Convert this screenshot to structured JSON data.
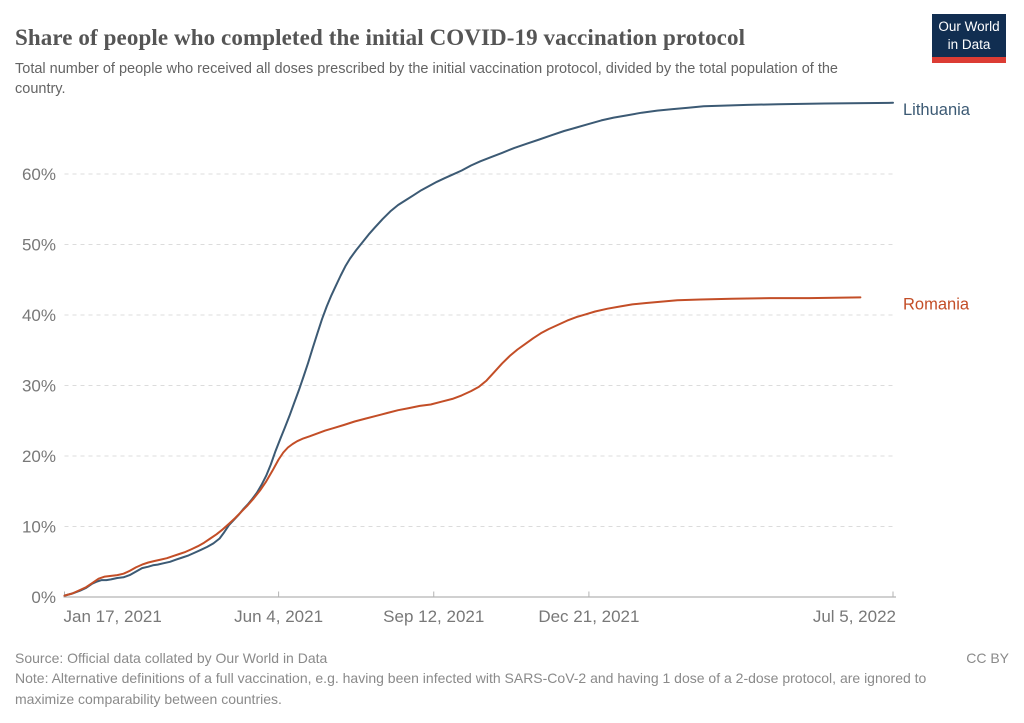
{
  "header": {
    "title": "Share of people who completed the initial COVID-19 vaccination protocol",
    "subtitle": "Total number of people who received all doses prescribed by the initial vaccination protocol, divided by the total population of the country.",
    "logo": {
      "line1": "Our World",
      "line2": "in Data"
    }
  },
  "footer": {
    "source": "Source: Official data collated by Our World in Data",
    "license": "CC BY",
    "note": "Note: Alternative definitions of a full vaccination, e.g. having been infected with SARS-CoV-2 and having 1 dose of a 2-dose protocol, are ignored to maximize comparability between countries."
  },
  "colors": {
    "lithuania": "#3C5A74",
    "romania": "#C34E27",
    "grid": "#dcdcdc",
    "axis": "#a1a1a1",
    "tick": "#b3b3b3",
    "tick_label": "#787878",
    "logo_bg": "#112E51",
    "logo_bar": "#DC3C34"
  },
  "chart_data": {
    "type": "line",
    "title": "Share of people who completed the initial COVID-19 vaccination protocol",
    "xlabel": "",
    "ylabel": "",
    "grid": true,
    "legend_position": "right-end-labels",
    "y_axis": {
      "min": 0,
      "max": 70,
      "unit": "%",
      "tick_step": 10,
      "tick_labels": [
        "0%",
        "10%",
        "20%",
        "30%",
        "40%",
        "50%",
        "60%"
      ]
    },
    "x_axis": {
      "start_date": "Jan 17, 2021",
      "end_date": "Jul 5, 2022",
      "range_days": [
        0,
        534
      ],
      "ticks": [
        {
          "label": "Jan 17, 2021",
          "day": 0,
          "align": "start"
        },
        {
          "label": "Jun 4, 2021",
          "day": 138,
          "align": "middle"
        },
        {
          "label": "Sep 12, 2021",
          "day": 238,
          "align": "middle"
        },
        {
          "label": "Dec 21, 2021",
          "day": 338,
          "align": "middle"
        },
        {
          "label": "Jul 5, 2022",
          "day": 534,
          "align": "end"
        }
      ]
    },
    "series": [
      {
        "name": "Lithuania",
        "color": "#3C5A74",
        "points": [
          [
            0,
            0.2
          ],
          [
            5,
            0.5
          ],
          [
            10,
            0.9
          ],
          [
            14,
            1.3
          ],
          [
            18,
            1.9
          ],
          [
            21,
            2.2
          ],
          [
            24,
            2.4
          ],
          [
            27,
            2.4
          ],
          [
            30,
            2.5
          ],
          [
            34,
            2.7
          ],
          [
            38,
            2.8
          ],
          [
            42,
            3.1
          ],
          [
            46,
            3.6
          ],
          [
            50,
            4.1
          ],
          [
            54,
            4.3
          ],
          [
            57,
            4.5
          ],
          [
            60,
            4.6
          ],
          [
            64,
            4.8
          ],
          [
            68,
            5.0
          ],
          [
            72,
            5.3
          ],
          [
            76,
            5.6
          ],
          [
            80,
            5.9
          ],
          [
            84,
            6.3
          ],
          [
            88,
            6.7
          ],
          [
            92,
            7.1
          ],
          [
            96,
            7.6
          ],
          [
            100,
            8.3
          ],
          [
            103,
            9.2
          ],
          [
            106,
            10.2
          ],
          [
            109,
            10.9
          ],
          [
            112,
            11.6
          ],
          [
            115,
            12.4
          ],
          [
            118,
            13.1
          ],
          [
            121,
            13.9
          ],
          [
            124,
            14.8
          ],
          [
            127,
            15.9
          ],
          [
            130,
            17.2
          ],
          [
            133,
            18.8
          ],
          [
            136,
            20.7
          ],
          [
            139,
            22.4
          ],
          [
            142,
            24.0
          ],
          [
            145,
            25.7
          ],
          [
            148,
            27.5
          ],
          [
            151,
            29.3
          ],
          [
            154,
            31.2
          ],
          [
            157,
            33.2
          ],
          [
            160,
            35.3
          ],
          [
            163,
            37.4
          ],
          [
            166,
            39.4
          ],
          [
            169,
            41.2
          ],
          [
            172,
            42.8
          ],
          [
            175,
            44.2
          ],
          [
            178,
            45.6
          ],
          [
            181,
            46.9
          ],
          [
            184,
            48.0
          ],
          [
            188,
            49.2
          ],
          [
            192,
            50.3
          ],
          [
            196,
            51.4
          ],
          [
            200,
            52.4
          ],
          [
            205,
            53.6
          ],
          [
            210,
            54.7
          ],
          [
            215,
            55.6
          ],
          [
            220,
            56.3
          ],
          [
            225,
            57.0
          ],
          [
            230,
            57.7
          ],
          [
            235,
            58.3
          ],
          [
            240,
            58.9
          ],
          [
            245,
            59.4
          ],
          [
            250,
            59.9
          ],
          [
            256,
            60.5
          ],
          [
            262,
            61.2
          ],
          [
            268,
            61.8
          ],
          [
            275,
            62.4
          ],
          [
            282,
            63.0
          ],
          [
            290,
            63.7
          ],
          [
            298,
            64.3
          ],
          [
            306,
            64.9
          ],
          [
            314,
            65.5
          ],
          [
            322,
            66.1
          ],
          [
            330,
            66.6
          ],
          [
            338,
            67.1
          ],
          [
            346,
            67.6
          ],
          [
            354,
            68.0
          ],
          [
            362,
            68.3
          ],
          [
            372,
            68.7
          ],
          [
            382,
            69.0
          ],
          [
            392,
            69.2
          ],
          [
            402,
            69.4
          ],
          [
            412,
            69.6
          ],
          [
            425,
            69.7
          ],
          [
            440,
            69.8
          ],
          [
            460,
            69.9
          ],
          [
            490,
            70.0
          ],
          [
            534,
            70.1
          ]
        ]
      },
      {
        "name": "Romania",
        "color": "#C34E27",
        "points": [
          [
            0,
            0.2
          ],
          [
            5,
            0.5
          ],
          [
            10,
            1.0
          ],
          [
            14,
            1.4
          ],
          [
            18,
            2.0
          ],
          [
            22,
            2.6
          ],
          [
            26,
            2.9
          ],
          [
            30,
            3.0
          ],
          [
            34,
            3.1
          ],
          [
            38,
            3.3
          ],
          [
            42,
            3.7
          ],
          [
            46,
            4.2
          ],
          [
            50,
            4.6
          ],
          [
            54,
            4.9
          ],
          [
            58,
            5.1
          ],
          [
            62,
            5.3
          ],
          [
            66,
            5.5
          ],
          [
            70,
            5.8
          ],
          [
            74,
            6.1
          ],
          [
            78,
            6.4
          ],
          [
            82,
            6.8
          ],
          [
            86,
            7.2
          ],
          [
            90,
            7.7
          ],
          [
            94,
            8.3
          ],
          [
            98,
            8.9
          ],
          [
            102,
            9.6
          ],
          [
            106,
            10.4
          ],
          [
            110,
            11.2
          ],
          [
            114,
            12.1
          ],
          [
            118,
            13.0
          ],
          [
            122,
            14.0
          ],
          [
            126,
            15.1
          ],
          [
            130,
            16.4
          ],
          [
            134,
            17.9
          ],
          [
            138,
            19.5
          ],
          [
            141,
            20.5
          ],
          [
            144,
            21.2
          ],
          [
            147,
            21.7
          ],
          [
            150,
            22.1
          ],
          [
            154,
            22.5
          ],
          [
            158,
            22.8
          ],
          [
            163,
            23.2
          ],
          [
            168,
            23.6
          ],
          [
            174,
            24.0
          ],
          [
            180,
            24.4
          ],
          [
            187,
            24.9
          ],
          [
            194,
            25.3
          ],
          [
            201,
            25.7
          ],
          [
            208,
            26.1
          ],
          [
            215,
            26.5
          ],
          [
            222,
            26.8
          ],
          [
            229,
            27.1
          ],
          [
            236,
            27.3
          ],
          [
            243,
            27.7
          ],
          [
            250,
            28.1
          ],
          [
            256,
            28.6
          ],
          [
            262,
            29.2
          ],
          [
            267,
            29.8
          ],
          [
            272,
            30.7
          ],
          [
            277,
            31.9
          ],
          [
            282,
            33.1
          ],
          [
            287,
            34.2
          ],
          [
            292,
            35.1
          ],
          [
            297,
            35.9
          ],
          [
            302,
            36.7
          ],
          [
            307,
            37.4
          ],
          [
            312,
            38.0
          ],
          [
            318,
            38.6
          ],
          [
            324,
            39.2
          ],
          [
            330,
            39.7
          ],
          [
            336,
            40.1
          ],
          [
            342,
            40.5
          ],
          [
            350,
            40.9
          ],
          [
            358,
            41.2
          ],
          [
            366,
            41.5
          ],
          [
            375,
            41.7
          ],
          [
            385,
            41.9
          ],
          [
            395,
            42.1
          ],
          [
            410,
            42.2
          ],
          [
            430,
            42.3
          ],
          [
            455,
            42.4
          ],
          [
            480,
            42.4
          ],
          [
            513,
            42.5
          ]
        ]
      }
    ]
  }
}
